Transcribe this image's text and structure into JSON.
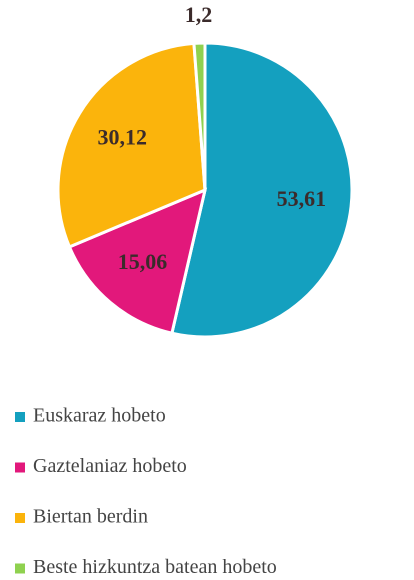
{
  "chart_data": {
    "type": "pie",
    "categories": [
      "Euskaraz hobeto",
      "Gaztelaniaz hobeto",
      "Biertan berdin",
      "Beste hizkuntza batean hobeto"
    ],
    "values": [
      53.61,
      15.06,
      30.12,
      1.2
    ],
    "value_labels": [
      "53,61",
      "15,06",
      "30,12",
      "1,2"
    ],
    "colors": [
      "#14a0bf",
      "#e2187b",
      "#fbb40c",
      "#8fd14f"
    ],
    "legend": "bottom"
  }
}
